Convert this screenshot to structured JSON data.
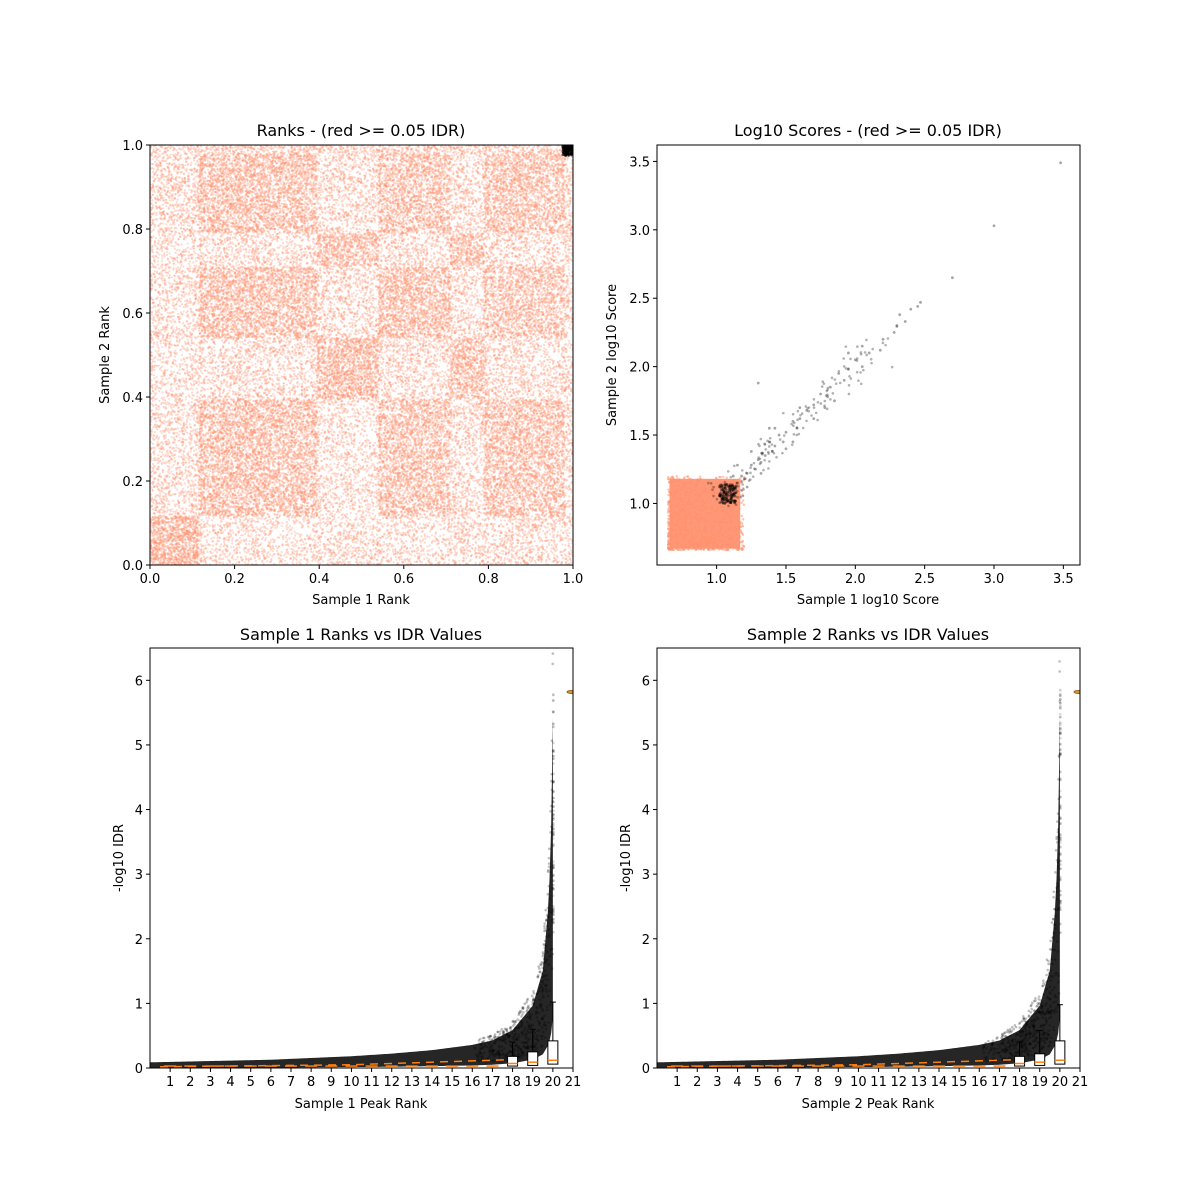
{
  "figure": {
    "background": "#ffffff",
    "accent_red": "#FF9270",
    "point_black": "#000000",
    "median_orange": "#FF7F0E"
  },
  "chart_data": [
    {
      "id": "ranks",
      "type": "scatter",
      "title": "Ranks - (red >= 0.05 IDR)",
      "xlabel": "Sample 1 Rank",
      "ylabel": "Sample 2 Rank",
      "xlim": [
        0,
        1
      ],
      "ylim": [
        0,
        1
      ],
      "xticks": [
        "0.0",
        "0.2",
        "0.4",
        "0.6",
        "0.8",
        "1.0"
      ],
      "yticks": [
        "0.0",
        "0.2",
        "0.4",
        "0.6",
        "0.8",
        "1.0"
      ],
      "grid": false,
      "series": [
        {
          "label_key": "red",
          "color": "#FF9270",
          "alpha": 0.25,
          "note_blocks_x": [
            [
              0.0,
              0.115
            ],
            [
              0.115,
              0.395
            ],
            [
              0.395,
              0.54
            ],
            [
              0.54,
              0.71
            ],
            [
              0.71,
              0.79
            ],
            [
              0.79,
              0.98
            ],
            [
              0.98,
              1.0
            ]
          ],
          "note_blocks_y": [
            [
              0.0,
              0.115
            ],
            [
              0.115,
              0.395
            ],
            [
              0.395,
              0.54
            ],
            [
              0.54,
              0.71
            ],
            [
              0.71,
              0.79
            ],
            [
              0.79,
              0.98
            ],
            [
              0.98,
              1.0
            ]
          ]
        },
        {
          "label_key": "black",
          "color": "#000000",
          "alpha": 0.6,
          "region": {
            "x": [
              0.975,
              1.0
            ],
            "y": [
              0.975,
              1.0
            ]
          }
        }
      ]
    },
    {
      "id": "scores",
      "type": "scatter",
      "title": "Log10 Scores - (red >= 0.05 IDR)",
      "xlabel": "Sample 1 log10 Score",
      "ylabel": "Sample 2 log10 Score",
      "xlim": [
        0.57,
        3.62
      ],
      "ylim": [
        0.55,
        3.62
      ],
      "xticks": [
        "1.0",
        "1.5",
        "2.0",
        "2.5",
        "3.0",
        "3.5"
      ],
      "yticks": [
        "1.0",
        "1.5",
        "2.0",
        "2.5",
        "3.0",
        "3.5"
      ],
      "grid": false,
      "series": [
        {
          "label_key": "red",
          "color": "#FF9270",
          "alpha": 0.35,
          "region": {
            "x": [
              0.65,
              1.2
            ],
            "y": [
              0.66,
              1.2
            ]
          }
        },
        {
          "label_key": "black",
          "color": "#000000",
          "alpha": 0.3,
          "points": [
            [
              3.48,
              3.49
            ],
            [
              3.0,
              3.03
            ],
            [
              2.7,
              2.65
            ],
            [
              2.47,
              2.47
            ],
            [
              2.45,
              2.44
            ],
            [
              2.4,
              2.42
            ],
            [
              2.32,
              2.38
            ],
            [
              2.36,
              2.33
            ],
            [
              2.28,
              2.25
            ],
            [
              2.3,
              2.3
            ],
            [
              2.2,
              2.2
            ],
            [
              2.18,
              2.12
            ],
            [
              2.1,
              2.1
            ],
            [
              2.05,
              2.15
            ],
            [
              2.0,
              2.05
            ],
            [
              1.95,
              1.98
            ],
            [
              1.92,
              1.9
            ],
            [
              1.88,
              1.95
            ],
            [
              1.82,
              1.85
            ],
            [
              1.8,
              1.78
            ],
            [
              1.75,
              1.8
            ],
            [
              1.7,
              1.72
            ],
            [
              1.65,
              1.68
            ],
            [
              1.6,
              1.62
            ],
            [
              1.58,
              1.55
            ],
            [
              1.55,
              1.6
            ],
            [
              1.5,
              1.52
            ],
            [
              1.48,
              1.45
            ],
            [
              1.45,
              1.5
            ],
            [
              1.42,
              1.42
            ],
            [
              1.4,
              1.38
            ],
            [
              1.38,
              1.45
            ],
            [
              1.35,
              1.35
            ],
            [
              1.32,
              1.3
            ],
            [
              1.3,
              1.32
            ],
            [
              1.28,
              1.25
            ],
            [
              1.25,
              1.28
            ],
            [
              1.22,
              1.22
            ],
            [
              1.2,
              1.18
            ],
            [
              1.18,
              1.2
            ],
            [
              1.15,
              1.15
            ],
            [
              1.12,
              1.1
            ],
            [
              1.1,
              1.12
            ],
            [
              1.08,
              1.08
            ],
            [
              1.05,
              1.05
            ],
            [
              1.04,
              1.02
            ],
            [
              1.06,
              1.0
            ],
            [
              1.03,
              1.06
            ],
            [
              1.3,
              1.88
            ],
            [
              1.38,
              1.55
            ],
            [
              1.6,
              1.7
            ],
            [
              1.7,
              1.62
            ],
            [
              1.78,
              1.7
            ],
            [
              1.85,
              1.75
            ],
            [
              1.95,
              2.1
            ],
            [
              2.05,
              2.0
            ],
            [
              1.5,
              1.4
            ],
            [
              1.42,
              1.55
            ],
            [
              1.55,
              1.45
            ],
            [
              1.25,
              1.38
            ],
            [
              1.32,
              1.22
            ],
            [
              1.15,
              1.28
            ],
            [
              1.22,
              1.12
            ],
            [
              1.12,
              1.2
            ]
          ]
        }
      ]
    },
    {
      "id": "sample1-idr",
      "type": "scatter",
      "title": "Sample 1 Ranks vs IDR Values",
      "xlabel": "Sample 1 Peak Rank",
      "ylabel": "-log10 IDR",
      "xlim": [
        0,
        21
      ],
      "ylim": [
        0,
        6.5
      ],
      "xticks": [
        "1",
        "2",
        "3",
        "4",
        "5",
        "6",
        "7",
        "8",
        "9",
        "10",
        "11",
        "12",
        "13",
        "14",
        "15",
        "16",
        "17",
        "18",
        "19",
        "20",
        "21"
      ],
      "yticks": [
        "0",
        "1",
        "2",
        "3",
        "4",
        "5",
        "6"
      ],
      "grid": false,
      "curve": [
        [
          0,
          0.05
        ],
        [
          2,
          0.06
        ],
        [
          4,
          0.07
        ],
        [
          6,
          0.08
        ],
        [
          8,
          0.1
        ],
        [
          10,
          0.12
        ],
        [
          12,
          0.15
        ],
        [
          14,
          0.19
        ],
        [
          16,
          0.25
        ],
        [
          17,
          0.3
        ],
        [
          18,
          0.42
        ],
        [
          19,
          0.7
        ],
        [
          19.5,
          1.1
        ],
        [
          19.8,
          1.9
        ],
        [
          19.95,
          3.0
        ],
        [
          20.0,
          4.0
        ],
        [
          20.02,
          5.85
        ]
      ],
      "boxes": [
        {
          "x": 18,
          "q1": 0.03,
          "median": 0.07,
          "q3": 0.18,
          "whisker_high": 0.4
        },
        {
          "x": 19,
          "q1": 0.04,
          "median": 0.09,
          "q3": 0.25,
          "whisker_high": 0.6
        },
        {
          "x": 20,
          "q1": 0.06,
          "median": 0.12,
          "q3": 0.42,
          "whisker_high": 1.02
        }
      ],
      "flier": {
        "x": 21,
        "y": 5.82
      }
    },
    {
      "id": "sample2-idr",
      "type": "scatter",
      "title": "Sample 2 Ranks vs IDR Values",
      "xlabel": "Sample 2 Peak Rank",
      "ylabel": "-log10 IDR",
      "xlim": [
        0,
        21
      ],
      "ylim": [
        0,
        6.5
      ],
      "xticks": [
        "1",
        "2",
        "3",
        "4",
        "5",
        "6",
        "7",
        "8",
        "9",
        "10",
        "11",
        "12",
        "13",
        "14",
        "15",
        "16",
        "17",
        "18",
        "19",
        "20",
        "21"
      ],
      "yticks": [
        "0",
        "1",
        "2",
        "3",
        "4",
        "5",
        "6"
      ],
      "grid": false,
      "curve": [
        [
          0,
          0.05
        ],
        [
          2,
          0.06
        ],
        [
          4,
          0.07
        ],
        [
          6,
          0.08
        ],
        [
          8,
          0.1
        ],
        [
          10,
          0.12
        ],
        [
          12,
          0.15
        ],
        [
          14,
          0.19
        ],
        [
          16,
          0.25
        ],
        [
          17,
          0.3
        ],
        [
          18,
          0.42
        ],
        [
          19,
          0.7
        ],
        [
          19.5,
          1.1
        ],
        [
          19.8,
          1.9
        ],
        [
          19.95,
          3.0
        ],
        [
          20.0,
          4.0
        ],
        [
          20.02,
          5.85
        ]
      ],
      "boxes": [
        {
          "x": 18,
          "q1": 0.03,
          "median": 0.07,
          "q3": 0.18,
          "whisker_high": 0.4
        },
        {
          "x": 19,
          "q1": 0.04,
          "median": 0.09,
          "q3": 0.22,
          "whisker_high": 0.58
        },
        {
          "x": 20,
          "q1": 0.06,
          "median": 0.12,
          "q3": 0.42,
          "whisker_high": 0.98
        }
      ],
      "flier": {
        "x": 21,
        "y": 5.82
      }
    }
  ]
}
